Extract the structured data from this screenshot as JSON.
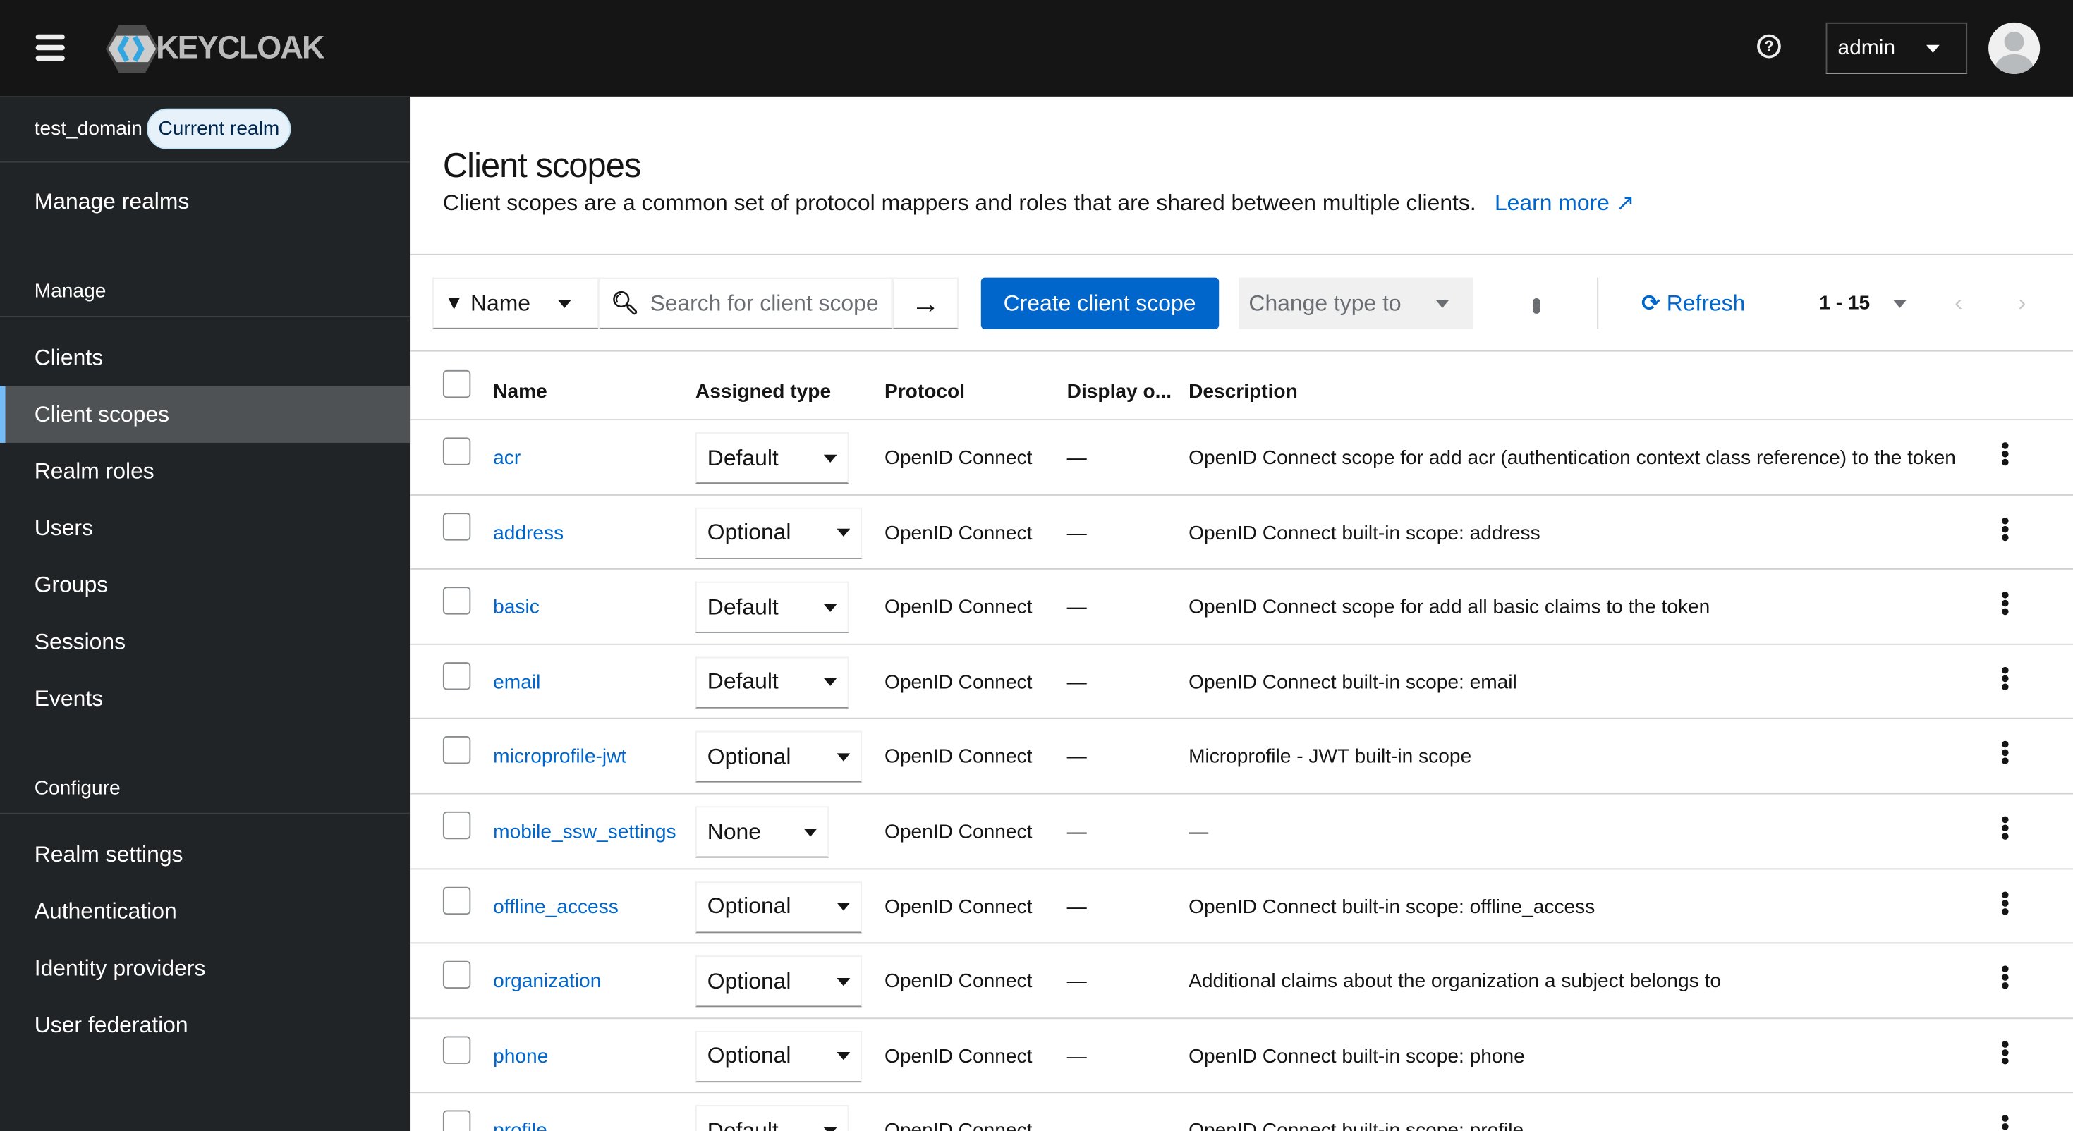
{
  "header": {
    "logo_text": "KEYCLOAK",
    "user": "admin",
    "help_icon": "question-circle-icon"
  },
  "sidebar": {
    "realm": "test_domain",
    "realm_badge": "Current realm",
    "manage_realms": "Manage realms",
    "manage_section": "Manage",
    "manage_items": [
      "Clients",
      "Client scopes",
      "Realm roles",
      "Users",
      "Groups",
      "Sessions",
      "Events"
    ],
    "active": "Client scopes",
    "configure_section": "Configure",
    "configure_items": [
      "Realm settings",
      "Authentication",
      "Identity providers",
      "User federation"
    ]
  },
  "page": {
    "title": "Client scopes",
    "description": "Client scopes are a common set of protocol mappers and roles that are shared between multiple clients.",
    "learn_more": "Learn more"
  },
  "toolbar": {
    "filter": "Name",
    "search_placeholder": "Search for client scope",
    "create": "Create client scope",
    "change_type": "Change type to",
    "refresh": "Refresh",
    "pagination": "1 - 15"
  },
  "table": {
    "headers": [
      "Name",
      "Assigned type",
      "Protocol",
      "Display o...",
      "Description"
    ],
    "rows": [
      {
        "name": "acr",
        "type": "Default",
        "protocol": "OpenID Connect",
        "display": "—",
        "description": "OpenID Connect scope for add acr (authentication context class reference) to the token"
      },
      {
        "name": "address",
        "type": "Optional",
        "protocol": "OpenID Connect",
        "display": "—",
        "description": "OpenID Connect built-in scope: address"
      },
      {
        "name": "basic",
        "type": "Default",
        "protocol": "OpenID Connect",
        "display": "—",
        "description": "OpenID Connect scope for add all basic claims to the token"
      },
      {
        "name": "email",
        "type": "Default",
        "protocol": "OpenID Connect",
        "display": "—",
        "description": "OpenID Connect built-in scope: email"
      },
      {
        "name": "microprofile-jwt",
        "type": "Optional",
        "protocol": "OpenID Connect",
        "display": "—",
        "description": "Microprofile - JWT built-in scope"
      },
      {
        "name": "mobile_ssw_settings",
        "type": "None",
        "protocol": "OpenID Connect",
        "display": "—",
        "description": "—"
      },
      {
        "name": "offline_access",
        "type": "Optional",
        "protocol": "OpenID Connect",
        "display": "—",
        "description": "OpenID Connect built-in scope: offline_access"
      },
      {
        "name": "organization",
        "type": "Optional",
        "protocol": "OpenID Connect",
        "display": "—",
        "description": "Additional claims about the organization a subject belongs to"
      },
      {
        "name": "phone",
        "type": "Optional",
        "protocol": "OpenID Connect",
        "display": "—",
        "description": "OpenID Connect built-in scope: phone"
      },
      {
        "name": "profile",
        "type": "Default",
        "protocol": "OpenID Connect",
        "display": "—",
        "description": "OpenID Connect built-in scope: profile"
      }
    ]
  }
}
